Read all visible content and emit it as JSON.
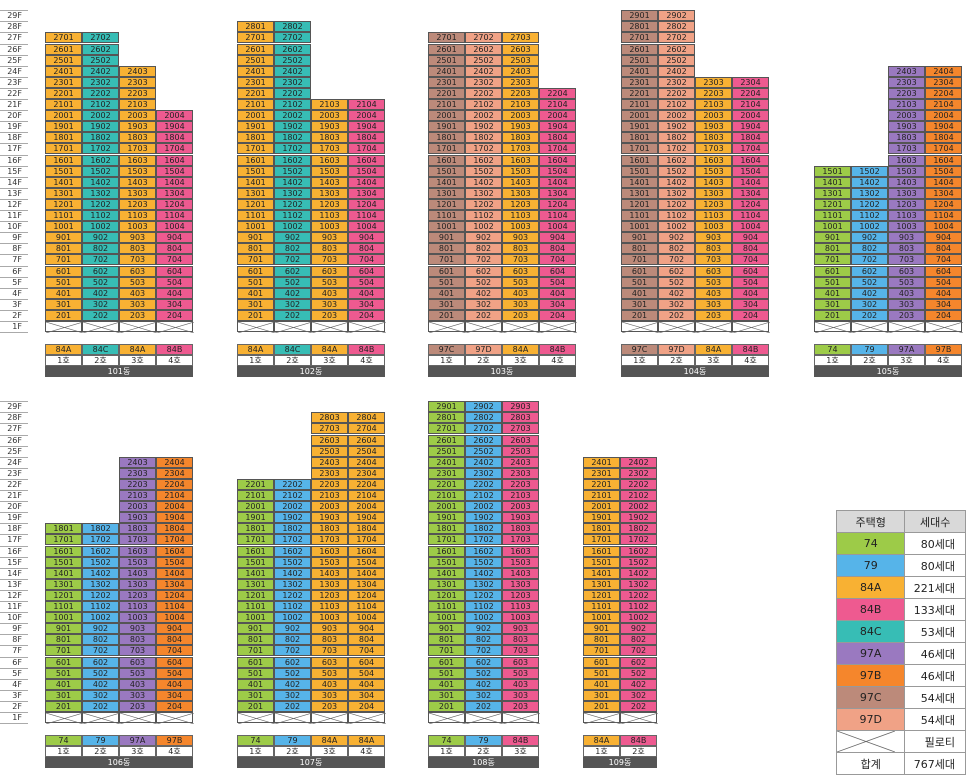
{
  "floors": [
    "29F",
    "28F",
    "27F",
    "26F",
    "25F",
    "24F",
    "23F",
    "22F",
    "21F",
    "20F",
    "19F",
    "18F",
    "17F",
    "16F",
    "15F",
    "14F",
    "13F",
    "12F",
    "11F",
    "10F",
    "9F",
    "8F",
    "7F",
    "6F",
    "5F",
    "4F",
    "3F",
    "2F",
    "1F"
  ],
  "colors": {
    "74": "#9dcb48",
    "79": "#56b4e9",
    "84A": "#f8b133",
    "84B": "#ee5a90",
    "84C": "#37bdb5",
    "97A": "#9a79c0",
    "97B": "#f5862c",
    "97C": "#bc8a7a",
    "97D": "#f0a286"
  },
  "buildings": [
    {
      "name": "101동",
      "columns": [
        {
          "ho": "1호",
          "type": "84A",
          "top": 27
        },
        {
          "ho": "2호",
          "type": "84C",
          "top": 27
        },
        {
          "ho": "3호",
          "type": "84A",
          "top": 24
        },
        {
          "ho": "4호",
          "type": "84B",
          "top": 20
        }
      ]
    },
    {
      "name": "102동",
      "columns": [
        {
          "ho": "1호",
          "type": "84A",
          "top": 28
        },
        {
          "ho": "2호",
          "type": "84C",
          "top": 28
        },
        {
          "ho": "3호",
          "type": "84A",
          "top": 21
        },
        {
          "ho": "4호",
          "type": "84B",
          "top": 21
        }
      ]
    },
    {
      "name": "103동",
      "columns": [
        {
          "ho": "1호",
          "type": "97C",
          "top": 27
        },
        {
          "ho": "2호",
          "type": "97D",
          "top": 27
        },
        {
          "ho": "3호",
          "type": "84A",
          "top": 27
        },
        {
          "ho": "4호",
          "type": "84B",
          "top": 22
        }
      ]
    },
    {
      "name": "104동",
      "columns": [
        {
          "ho": "1호",
          "type": "97C",
          "top": 29
        },
        {
          "ho": "2호",
          "type": "97D",
          "top": 29
        },
        {
          "ho": "3호",
          "type": "84A",
          "top": 23
        },
        {
          "ho": "4호",
          "type": "84B",
          "top": 23
        }
      ]
    },
    {
      "name": "105동",
      "columns": [
        {
          "ho": "1호",
          "type": "74",
          "top": 15
        },
        {
          "ho": "2호",
          "type": "79",
          "top": 15
        },
        {
          "ho": "3호",
          "type": "97A",
          "top": 24
        },
        {
          "ho": "4호",
          "type": "97B",
          "top": 24
        }
      ]
    },
    {
      "name": "106동",
      "columns": [
        {
          "ho": "1호",
          "type": "74",
          "top": 18
        },
        {
          "ho": "2호",
          "type": "79",
          "top": 18
        },
        {
          "ho": "3호",
          "type": "97A",
          "top": 24
        },
        {
          "ho": "4호",
          "type": "97B",
          "top": 24
        }
      ]
    },
    {
      "name": "107동",
      "columns": [
        {
          "ho": "1호",
          "type": "74",
          "top": 22
        },
        {
          "ho": "2호",
          "type": "79",
          "top": 22
        },
        {
          "ho": "3호",
          "type": "84A",
          "top": 28
        },
        {
          "ho": "4호",
          "type": "84A",
          "top": 28
        }
      ]
    },
    {
      "name": "108동",
      "columns": [
        {
          "ho": "1호",
          "type": "74",
          "top": 29
        },
        {
          "ho": "2호",
          "type": "79",
          "top": 29
        },
        {
          "ho": "3호",
          "type": "84B",
          "top": 29
        }
      ]
    },
    {
      "name": "109동",
      "columns": [
        {
          "ho": "1호",
          "type": "84A",
          "top": 24
        },
        {
          "ho": "2호",
          "type": "84B",
          "top": 24
        }
      ]
    }
  ],
  "legend": {
    "header_type": "주택형",
    "header_count": "세대수",
    "rows": [
      {
        "type": "74",
        "count": "80세대"
      },
      {
        "type": "79",
        "count": "80세대"
      },
      {
        "type": "84A",
        "count": "221세대"
      },
      {
        "type": "84B",
        "count": "133세대"
      },
      {
        "type": "84C",
        "count": "53세대"
      },
      {
        "type": "97A",
        "count": "46세대"
      },
      {
        "type": "97B",
        "count": "46세대"
      },
      {
        "type": "97C",
        "count": "54세대"
      },
      {
        "type": "97D",
        "count": "54세대"
      }
    ],
    "piloti_label": "필로티",
    "total_label": "합계",
    "total_count": "767세대"
  }
}
